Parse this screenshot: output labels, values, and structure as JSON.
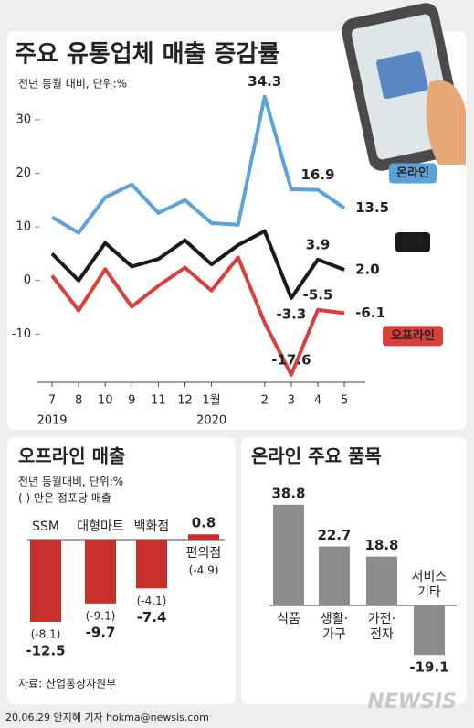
{
  "title": "주요 유통업체 매출 증감률",
  "source": "자료: 산업통상자원부",
  "credit": "20.06.29 안지혜 기자 hokma@newsis.com",
  "logo": "NEWSIS",
  "chart_data": [
    {
      "type": "line",
      "subtitle": "전년 동월 대비, 단위:%",
      "categories": [
        "7",
        "8",
        "10",
        "9",
        "11",
        "12",
        "1월",
        null,
        "2",
        "3",
        "4",
        "5"
      ],
      "years": [
        "2019",
        "2020"
      ],
      "ylim": [
        -19,
        38
      ],
      "yticks": [
        -10,
        0,
        10,
        20,
        30
      ],
      "series": [
        {
          "name": "온라인",
          "color": "#5ba3d9",
          "values": [
            11.8,
            8.9,
            15.5,
            17.9,
            12.6,
            15,
            10.7,
            10.4,
            34.3,
            17,
            16.9,
            13.5
          ],
          "value_labels": [
            null,
            null,
            null,
            null,
            null,
            null,
            null,
            null,
            "34.3",
            null,
            "16.9",
            "13.5"
          ]
        },
        {
          "name": "전체",
          "color": "#1a1a1a",
          "values": [
            5,
            0,
            7,
            2.6,
            4,
            7.5,
            3,
            6.6,
            9.2,
            -3.3,
            3.9,
            2
          ],
          "value_labels": [
            null,
            null,
            null,
            null,
            null,
            null,
            null,
            null,
            null,
            "-3.3",
            "3.9",
            "2.0"
          ]
        },
        {
          "name": "오프라인",
          "color": "#d9403a",
          "values": [
            0.9,
            -5.6,
            2.1,
            -4.9,
            -1,
            2.4,
            -1.9,
            4.3,
            -7.9,
            -17.6,
            -5.5,
            -6.1
          ],
          "value_labels": [
            null,
            null,
            null,
            null,
            null,
            null,
            null,
            null,
            null,
            "-17.6",
            "-5.5",
            "-6.1"
          ]
        }
      ]
    },
    {
      "type": "bar",
      "title": "오프라인 매출",
      "subtitle": [
        "전년 동월대비, 단위:%",
        "( ) 안은 점포당 매출"
      ],
      "categories": [
        "SSM",
        "대형마트",
        "백화점",
        "편의점"
      ],
      "values": [
        -12.5,
        -9.7,
        -7.4,
        0.8
      ],
      "color": "#c9302c",
      "store_values": [
        -8.1,
        -9.1,
        -4.1,
        -4.9
      ],
      "store_labels": [
        "(-8.1)",
        "(-9.1)",
        "(-4.1)",
        "(-4.9)"
      ],
      "ylim": [
        -14,
        2
      ]
    },
    {
      "type": "bar",
      "title": "온라인 주요 품목",
      "categories": [
        [
          "식품"
        ],
        [
          "생활·",
          "가구"
        ],
        [
          "가전·",
          "전자"
        ],
        [
          "서비스",
          "기타"
        ]
      ],
      "values": [
        38.8,
        22.7,
        18.8,
        -19.1
      ],
      "color": "#8c8c8c",
      "ylim": [
        -21,
        40
      ]
    }
  ]
}
